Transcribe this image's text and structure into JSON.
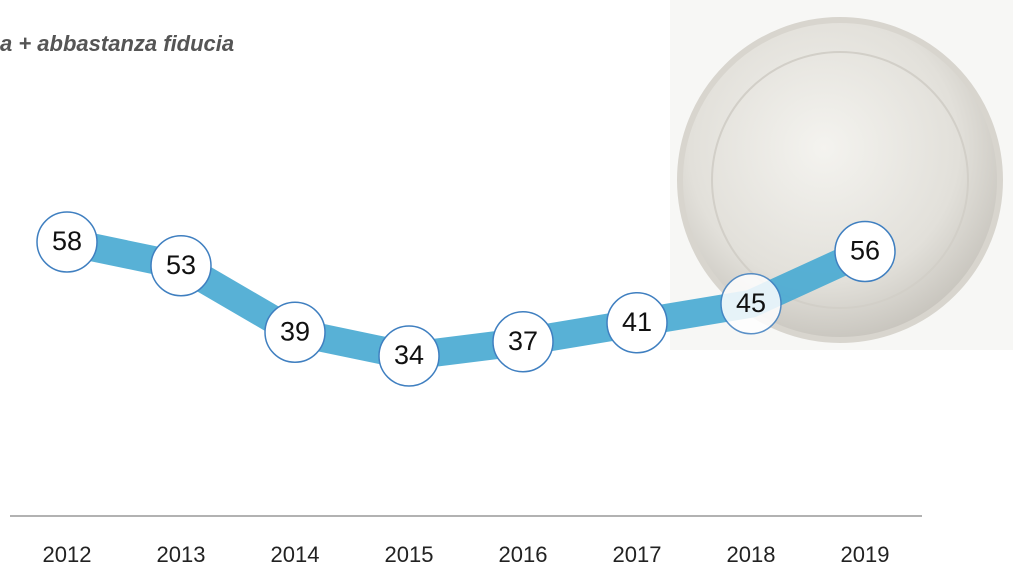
{
  "chart_data": {
    "type": "line",
    "title": "a + abbastanza  fiducia",
    "categories": [
      "2012",
      "2013",
      "2014",
      "2015",
      "2016",
      "2017",
      "2018",
      "2019"
    ],
    "values": [
      58,
      53,
      39,
      34,
      37,
      41,
      45,
      56
    ],
    "color": "#4aaad2"
  }
}
